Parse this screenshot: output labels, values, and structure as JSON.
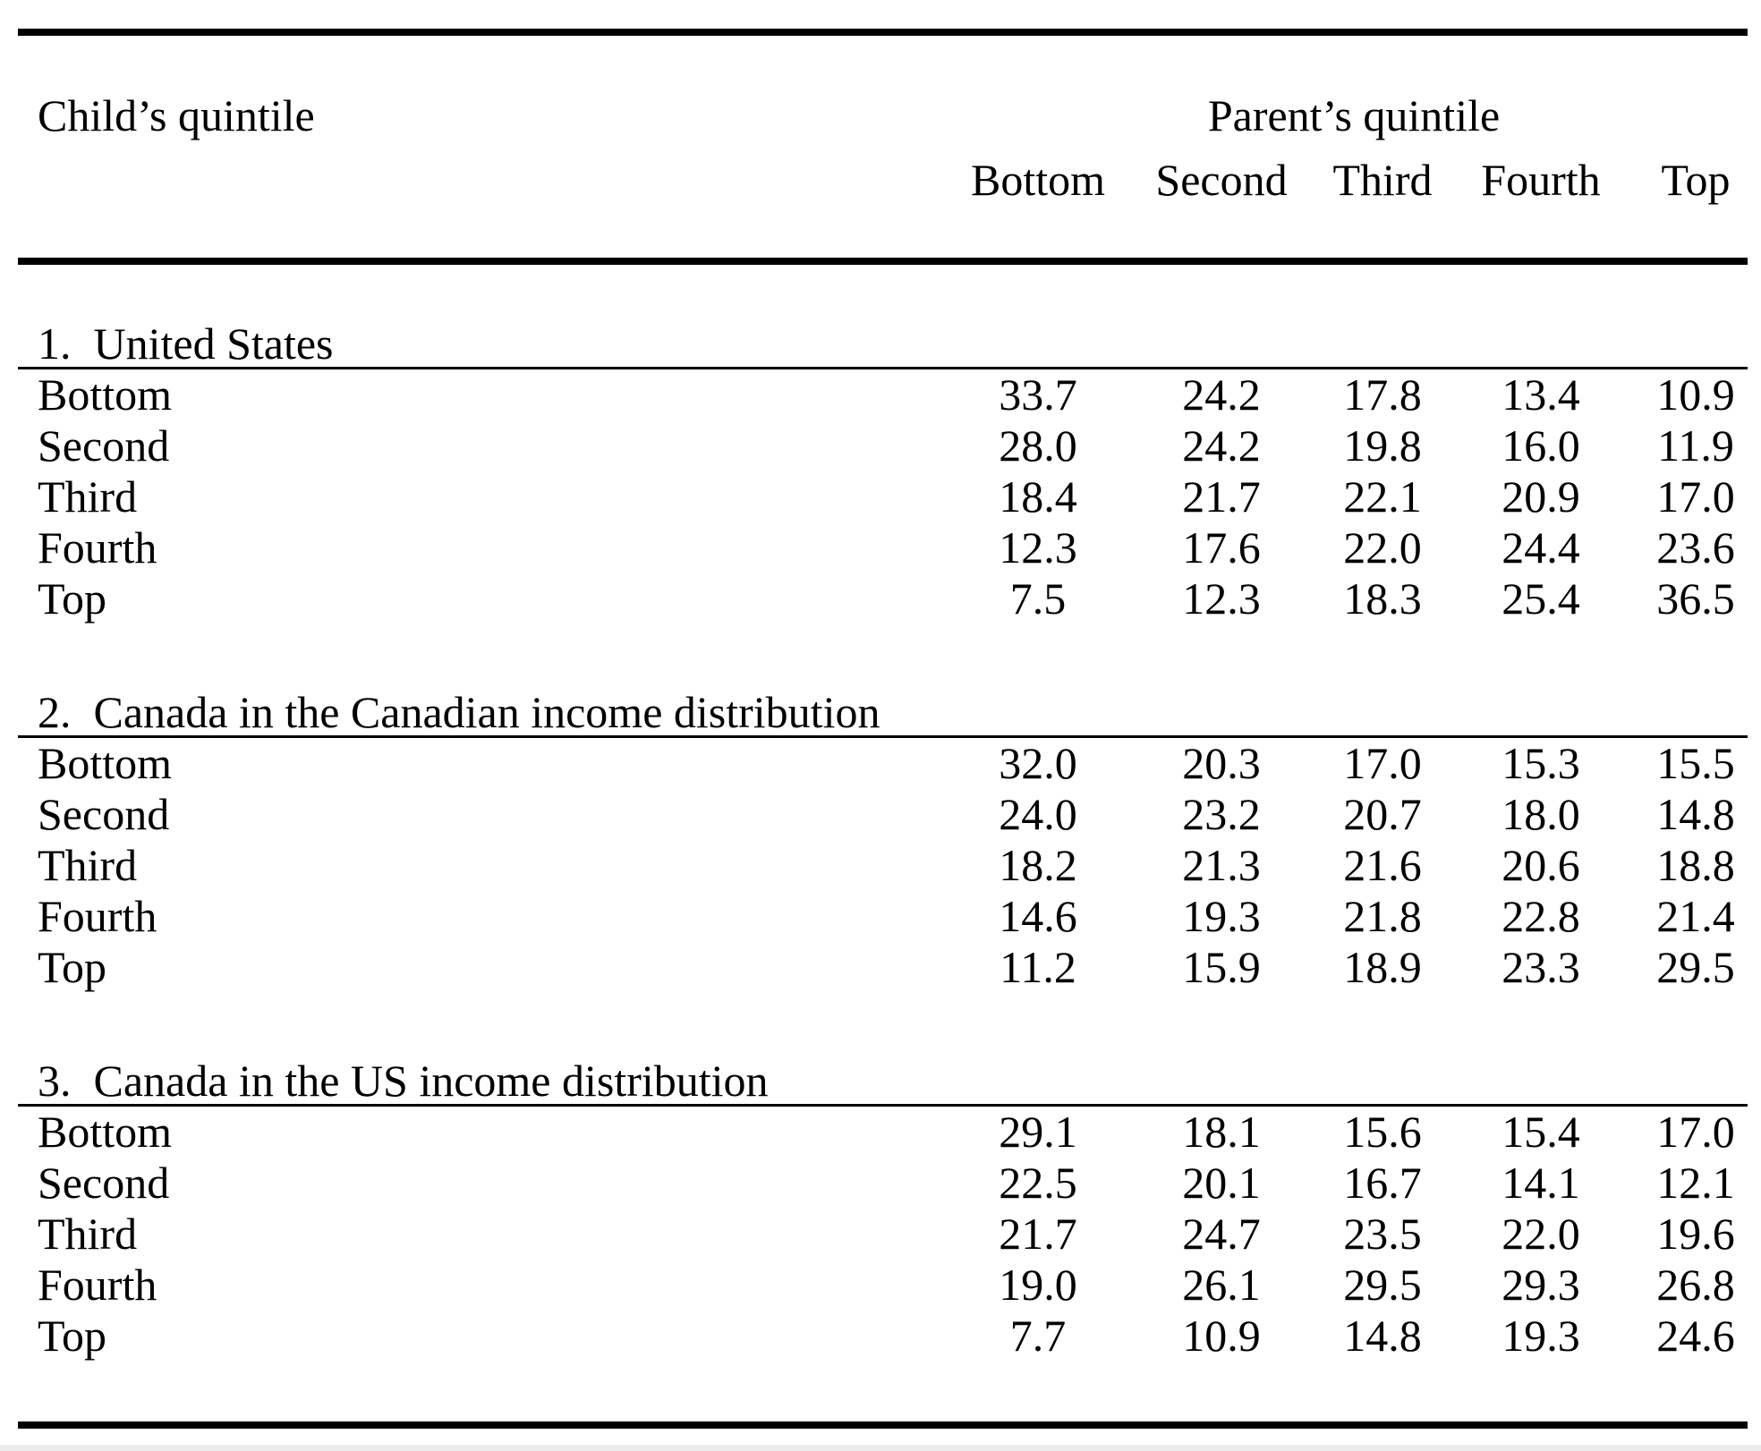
{
  "page": {
    "background": "#ffffff",
    "text_color": "#000000",
    "edge_strip_color": "#ececec"
  },
  "table": {
    "header": {
      "row_label": "Child’s quintile",
      "group_label": "Parent’s quintile",
      "columns": [
        "Bottom",
        "Second",
        "Third",
        "Fourth",
        "Top"
      ]
    },
    "panels": [
      {
        "title": "1.  United States",
        "rows": [
          {
            "label": "Bottom",
            "values": [
              "33.7",
              "24.2",
              "17.8",
              "13.4",
              "10.9"
            ]
          },
          {
            "label": "Second",
            "values": [
              "28.0",
              "24.2",
              "19.8",
              "16.0",
              "11.9"
            ]
          },
          {
            "label": "Third",
            "values": [
              "18.4",
              "21.7",
              "22.1",
              "20.9",
              "17.0"
            ]
          },
          {
            "label": "Fourth",
            "values": [
              "12.3",
              "17.6",
              "22.0",
              "24.4",
              "23.6"
            ]
          },
          {
            "label": "Top",
            "values": [
              "7.5",
              "12.3",
              "18.3",
              "25.4",
              "36.5"
            ]
          }
        ]
      },
      {
        "title": "2.  Canada in the Canadian income distribution",
        "rows": [
          {
            "label": "Bottom",
            "values": [
              "32.0",
              "20.3",
              "17.0",
              "15.3",
              "15.5"
            ]
          },
          {
            "label": "Second",
            "values": [
              "24.0",
              "23.2",
              "20.7",
              "18.0",
              "14.8"
            ]
          },
          {
            "label": "Third",
            "values": [
              "18.2",
              "21.3",
              "21.6",
              "20.6",
              "18.8"
            ]
          },
          {
            "label": "Fourth",
            "values": [
              "14.6",
              "19.3",
              "21.8",
              "22.8",
              "21.4"
            ]
          },
          {
            "label": "Top",
            "values": [
              "11.2",
              "15.9",
              "18.9",
              "23.3",
              "29.5"
            ]
          }
        ]
      },
      {
        "title": "3.  Canada in the US income distribution",
        "rows": [
          {
            "label": "Bottom",
            "values": [
              "29.1",
              "18.1",
              "15.6",
              "15.4",
              "17.0"
            ]
          },
          {
            "label": "Second",
            "values": [
              "22.5",
              "20.1",
              "16.7",
              "14.1",
              "12.1"
            ]
          },
          {
            "label": "Third",
            "values": [
              "21.7",
              "24.7",
              "23.5",
              "22.0",
              "19.6"
            ]
          },
          {
            "label": "Fourth",
            "values": [
              "19.0",
              "26.1",
              "29.5",
              "29.3",
              "26.8"
            ]
          },
          {
            "label": "Top",
            "values": [
              "7.7",
              "10.9",
              "14.8",
              "19.3",
              "24.6"
            ]
          }
        ]
      }
    ]
  }
}
